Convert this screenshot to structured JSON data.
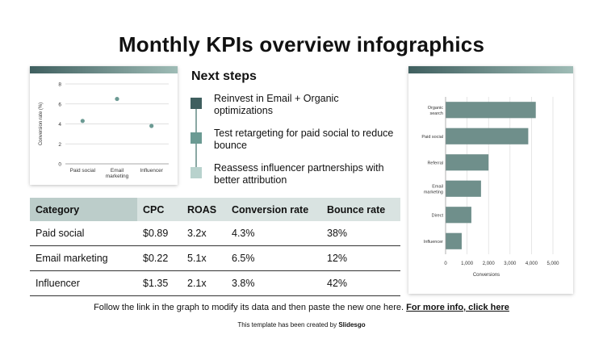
{
  "title": "Monthly KPIs overview infographics",
  "next_steps": {
    "heading": "Next steps",
    "items": [
      {
        "text": "Reinvest in Email + Organic optimizations",
        "color": "#3f5f5f"
      },
      {
        "text": "Test retargeting for paid social to reduce bounce",
        "color": "#6b9a93"
      },
      {
        "text": "Reassess influencer partnerships with better attribution",
        "color": "#b8d2cd"
      }
    ]
  },
  "table": {
    "headers": [
      "Category",
      "CPC",
      "ROAS",
      "Conversion rate",
      "Bounce rate"
    ],
    "rows": [
      [
        "Paid social",
        "$0.89",
        "3.2x",
        "4.3%",
        "38%"
      ],
      [
        "Email marketing",
        "$0.22",
        "5.1x",
        "6.5%",
        "12%"
      ],
      [
        "Influencer",
        "$1.35",
        "2.1x",
        "3.8%",
        "42%"
      ]
    ]
  },
  "footer": {
    "text": "Follow the link in the graph to modify its data and then paste the new one here. ",
    "link": "For more info, click here"
  },
  "credit": {
    "text": "This template has been created by ",
    "brand": "Slidesgo"
  },
  "colors": {
    "accent": "#6b9a93",
    "bar": "#6f8f8b",
    "dark": "#3f5f5f"
  },
  "chart_data": [
    {
      "type": "scatter",
      "title": "",
      "xlabel": "",
      "ylabel": "Conversion rate (%)",
      "categories": [
        "Paid social",
        "Email marketing",
        "Influencer"
      ],
      "category_lines": [
        [
          "Paid social"
        ],
        [
          "Email",
          "marketing"
        ],
        [
          "Influencer"
        ]
      ],
      "values": [
        4.3,
        6.5,
        3.8
      ],
      "ylim": [
        0,
        8
      ],
      "yticks": [
        0,
        2,
        4,
        6,
        8
      ],
      "grid": true
    },
    {
      "type": "bar",
      "orientation": "horizontal",
      "title": "",
      "xlabel": "Conversions",
      "ylabel": "",
      "categories": [
        "Organic search",
        "Paid social",
        "Referral",
        "Email marketing",
        "Direct",
        "Influencer"
      ],
      "category_lines": [
        [
          "Organic",
          "search"
        ],
        [
          "Paid social"
        ],
        [
          "Referral"
        ],
        [
          "Email",
          "marketing"
        ],
        [
          "Direct"
        ],
        [
          "Influencer"
        ]
      ],
      "values": [
        4200,
        3850,
        2000,
        1650,
        1200,
        750
      ],
      "xlim": [
        0,
        5000
      ],
      "xticks": [
        0,
        1000,
        2000,
        3000,
        4000,
        5000
      ],
      "xtick_labels": [
        "0",
        "1,000",
        "2,000",
        "3,000",
        "4,000",
        "5,000"
      ],
      "grid": true
    }
  ]
}
